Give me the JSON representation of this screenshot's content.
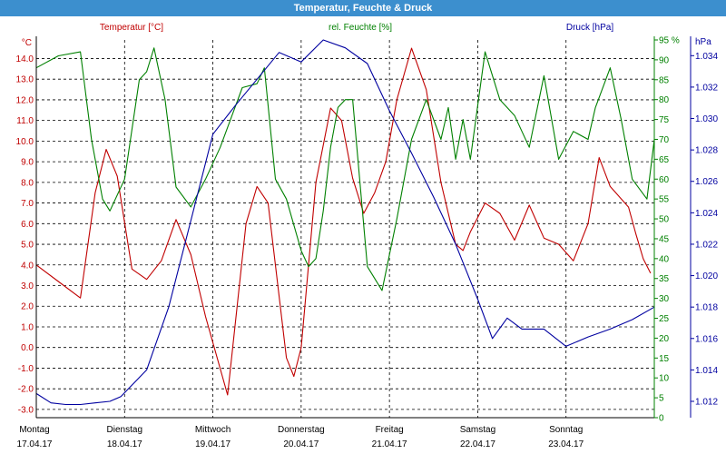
{
  "window": {
    "title": "Temperatur, Feuchte & Druck"
  },
  "chart_data": {
    "type": "line",
    "title": "Temperatur, Feuchte & Druck",
    "grid": true,
    "x_range": [
      "17.04.17 00:00",
      "24.04.17 00:00"
    ],
    "x_ticks": [
      {
        "day": "Montag",
        "date": "17.04.17"
      },
      {
        "day": "Dienstag",
        "date": "18.04.17"
      },
      {
        "day": "Mittwoch",
        "date": "19.04.17"
      },
      {
        "day": "Donnerstag",
        "date": "20.04.17"
      },
      {
        "day": "Freitag",
        "date": "21.04.17"
      },
      {
        "day": "Samstag",
        "date": "22.04.17"
      },
      {
        "day": "Sonntag",
        "date": "23.04.17"
      }
    ],
    "axes": {
      "temperature": {
        "label": "Temperatur [°C]",
        "unit": "°C",
        "color": "#c00000",
        "ylim": [
          -3.4,
          14.9
        ],
        "ticks": [
          "-3.0",
          "-2.0",
          "-1.0",
          "0.0",
          "1.0",
          "2.0",
          "3.0",
          "4.0",
          "5.0",
          "6.0",
          "7.0",
          "8.0",
          "9.0",
          "10.0",
          "11.0",
          "12.0",
          "13.0",
          "14.0"
        ]
      },
      "humidity": {
        "label": "rel. Feuchte [%]",
        "unit": "%",
        "color": "#008000",
        "ylim": [
          0,
          95
        ],
        "ticks": [
          "0",
          "5",
          "10",
          "15",
          "20",
          "25",
          "30",
          "35",
          "40",
          "45",
          "50",
          "55",
          "60",
          "65",
          "70",
          "75",
          "80",
          "85",
          "90",
          "95"
        ]
      },
      "pressure": {
        "label": "Druck [hPa]",
        "unit": "hPa",
        "color": "#0000a0",
        "ylim": [
          1010.96,
          1035.0
        ],
        "ticks": [
          "1.012",
          "1.014",
          "1.016",
          "1.018",
          "1.020",
          "1.022",
          "1.024",
          "1.026",
          "1.028",
          "1.030",
          "1.032",
          "1.034"
        ]
      }
    },
    "series": [
      {
        "name": "Temperatur [°C]",
        "axis": "temperature",
        "color": "#c00000",
        "x": [
          "17.04.17 00:00",
          "17.04.17 06:00",
          "17.04.17 12:00",
          "17.04.17 16:00",
          "17.04.17 19:00",
          "17.04.17 22:00",
          "18.04.17 02:00",
          "18.04.17 06:00",
          "18.04.17 10:00",
          "18.04.17 14:00",
          "18.04.17 18:00",
          "18.04.17 22:00",
          "19.04.17 04:00",
          "19.04.17 09:00",
          "19.04.17 12:00",
          "19.04.17 15:00",
          "19.04.17 20:00",
          "19.04.17 22:00",
          "20.04.17 00:00",
          "20.04.17 04:00",
          "20.04.17 08:00",
          "20.04.17 11:00",
          "20.04.17 14:00",
          "20.04.17 17:00",
          "20.04.17 20:00",
          "20.04.17 23:00",
          "21.04.17 02:00",
          "21.04.17 06:00",
          "21.04.17 10:00",
          "21.04.17 14:00",
          "21.04.17 16:00",
          "21.04.17 18:00",
          "21.04.17 20:00",
          "21.04.17 22:00",
          "22.04.17 02:00",
          "22.04.17 06:00",
          "22.04.17 10:00",
          "22.04.17 14:00",
          "22.04.17 18:00",
          "22.04.17 22:00",
          "23.04.17 02:00",
          "23.04.17 06:00",
          "23.04.17 09:00",
          "23.04.17 12:00",
          "23.04.17 15:00",
          "23.04.17 17:00",
          "23.04.17 19:00",
          "23.04.17 21:00",
          "23.04.17 23:00"
        ],
        "values": [
          4.0,
          3.2,
          2.4,
          7.5,
          9.6,
          8.3,
          3.8,
          3.3,
          4.2,
          6.2,
          4.5,
          1.5,
          -2.3,
          6.0,
          7.8,
          7.0,
          -0.5,
          -1.4,
          0.0,
          8.0,
          11.6,
          11.0,
          8.2,
          6.5,
          7.5,
          9.0,
          12.0,
          14.5,
          12.5,
          8.0,
          6.5,
          5.0,
          4.7,
          5.6,
          7.0,
          6.5,
          5.2,
          6.9,
          5.3,
          5.0,
          4.2,
          6.0,
          9.2,
          7.8,
          7.2,
          6.8,
          5.5,
          4.3,
          3.6
        ]
      },
      {
        "name": "rel. Feuchte [%]",
        "axis": "humidity",
        "color": "#008000",
        "x": [
          "17.04.17 00:00",
          "17.04.17 06:00",
          "17.04.17 12:00",
          "17.04.17 15:00",
          "17.04.17 18:00",
          "17.04.17 20:00",
          "18.04.17 00:00",
          "18.04.17 04:00",
          "18.04.17 06:00",
          "18.04.17 08:00",
          "18.04.17 11:00",
          "18.04.17 14:00",
          "18.04.17 18:00",
          "18.04.17 22:00",
          "19.04.17 02:00",
          "19.04.17 06:00",
          "19.04.17 08:00",
          "19.04.17 12:00",
          "19.04.17 14:00",
          "19.04.17 17:00",
          "19.04.17 20:00",
          "20.04.17 00:00",
          "20.04.17 02:00",
          "20.04.17 04:00",
          "20.04.17 06:00",
          "20.04.17 08:00",
          "20.04.17 10:00",
          "20.04.17 12:00",
          "20.04.17 14:00",
          "20.04.17 18:00",
          "20.04.17 22:00",
          "21.04.17 02:00",
          "21.04.17 06:00",
          "21.04.17 10:00",
          "21.04.17 14:00",
          "21.04.17 16:00",
          "21.04.17 18:00",
          "21.04.17 20:00",
          "21.04.17 22:00",
          "22.04.17 02:00",
          "22.04.17 06:00",
          "22.04.17 10:00",
          "22.04.17 14:00",
          "22.04.17 18:00",
          "22.04.17 22:00",
          "23.04.17 02:00",
          "23.04.17 06:00",
          "23.04.17 08:00",
          "23.04.17 12:00",
          "23.04.17 15:00",
          "23.04.17 18:00",
          "23.04.17 22:00",
          "24.04.17 00:00"
        ],
        "values": [
          88,
          91,
          92,
          70,
          55,
          52,
          60,
          85,
          87,
          93,
          80,
          58,
          53,
          60,
          68,
          78,
          83,
          84,
          88,
          60,
          55,
          42,
          38,
          40,
          52,
          68,
          78,
          80,
          80,
          38,
          32,
          50,
          70,
          80,
          70,
          78,
          65,
          75,
          65,
          92,
          80,
          76,
          68,
          86,
          65,
          72,
          70,
          78,
          88,
          75,
          60,
          55,
          70
        ]
      },
      {
        "name": "Druck [hPa]",
        "axis": "pressure",
        "color": "#0000a0",
        "x": [
          "17.04.17 00:00",
          "17.04.17 04:00",
          "17.04.17 08:00",
          "17.04.17 12:00",
          "17.04.17 16:00",
          "17.04.17 20:00",
          "17.04.17 23:00",
          "18.04.17 06:00",
          "18.04.17 12:00",
          "18.04.17 18:00",
          "19.04.17 00:00",
          "19.04.17 06:00",
          "19.04.17 12:00",
          "19.04.17 18:00",
          "20.04.17 00:00",
          "20.04.17 06:00",
          "20.04.17 12:00",
          "20.04.17 18:00",
          "21.04.17 00:00",
          "21.04.17 06:00",
          "21.04.17 12:00",
          "21.04.17 18:00",
          "22.04.17 00:00",
          "22.04.17 04:00",
          "22.04.17 08:00",
          "22.04.17 12:00",
          "22.04.17 18:00",
          "23.04.17 00:00",
          "23.04.17 06:00",
          "23.04.17 12:00",
          "23.04.17 18:00",
          "24.04.17 00:00"
        ],
        "values": [
          1012.5,
          1011.9,
          1011.8,
          1011.8,
          1011.9,
          1012.0,
          1012.3,
          1014.0,
          1018.0,
          1023.5,
          1029.0,
          1030.8,
          1032.5,
          1034.2,
          1033.6,
          1035.0,
          1034.5,
          1033.5,
          1030.5,
          1027.8,
          1025.0,
          1022.0,
          1018.5,
          1016.0,
          1017.3,
          1016.6,
          1016.6,
          1015.5,
          1016.1,
          1016.6,
          1017.2,
          1018.0
        ]
      }
    ]
  }
}
